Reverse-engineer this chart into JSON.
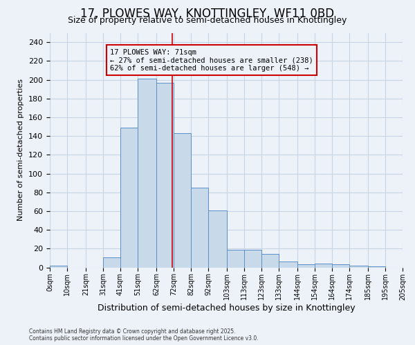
{
  "title": "17, PLOWES WAY, KNOTTINGLEY, WF11 0BD",
  "subtitle": "Size of property relative to semi-detached houses in Knottingley",
  "xlabel": "Distribution of semi-detached houses by size in Knottingley",
  "ylabel": "Number of semi-detached properties",
  "property_size": 71,
  "annotation_title": "17 PLOWES WAY: 71sqm",
  "annotation_line1": "← 27% of semi-detached houses are smaller (238)",
  "annotation_line2": "62% of semi-detached houses are larger (548) →",
  "footnote1": "Contains HM Land Registry data © Crown copyright and database right 2025.",
  "footnote2": "Contains public sector information licensed under the Open Government Licence v3.0.",
  "bar_color": "#c8d9ea",
  "bar_edge_color": "#5b8fc9",
  "grid_color": "#c8d4e3",
  "background_color": "#edf2f9",
  "vline_color": "#cc0000",
  "annotation_box_edge_color": "#cc0000",
  "annotation_box_fill": "#edf2f9",
  "bin_edges": [
    0,
    10,
    21,
    31,
    41,
    51,
    62,
    72,
    82,
    92,
    103,
    113,
    123,
    133,
    144,
    154,
    164,
    174,
    185,
    195,
    205
  ],
  "bin_labels": [
    "0sqm",
    "10sqm",
    "21sqm",
    "31sqm",
    "41sqm",
    "51sqm",
    "62sqm",
    "72sqm",
    "82sqm",
    "92sqm",
    "103sqm",
    "113sqm",
    "123sqm",
    "133sqm",
    "144sqm",
    "154sqm",
    "164sqm",
    "174sqm",
    "185sqm",
    "195sqm",
    "205sqm"
  ],
  "counts": [
    2,
    0,
    0,
    11,
    149,
    201,
    197,
    143,
    85,
    61,
    19,
    19,
    14,
    6,
    3,
    4,
    3,
    2,
    1,
    0
  ],
  "ylim": [
    0,
    250
  ],
  "yticks": [
    0,
    20,
    40,
    60,
    80,
    100,
    120,
    140,
    160,
    180,
    200,
    220,
    240
  ]
}
